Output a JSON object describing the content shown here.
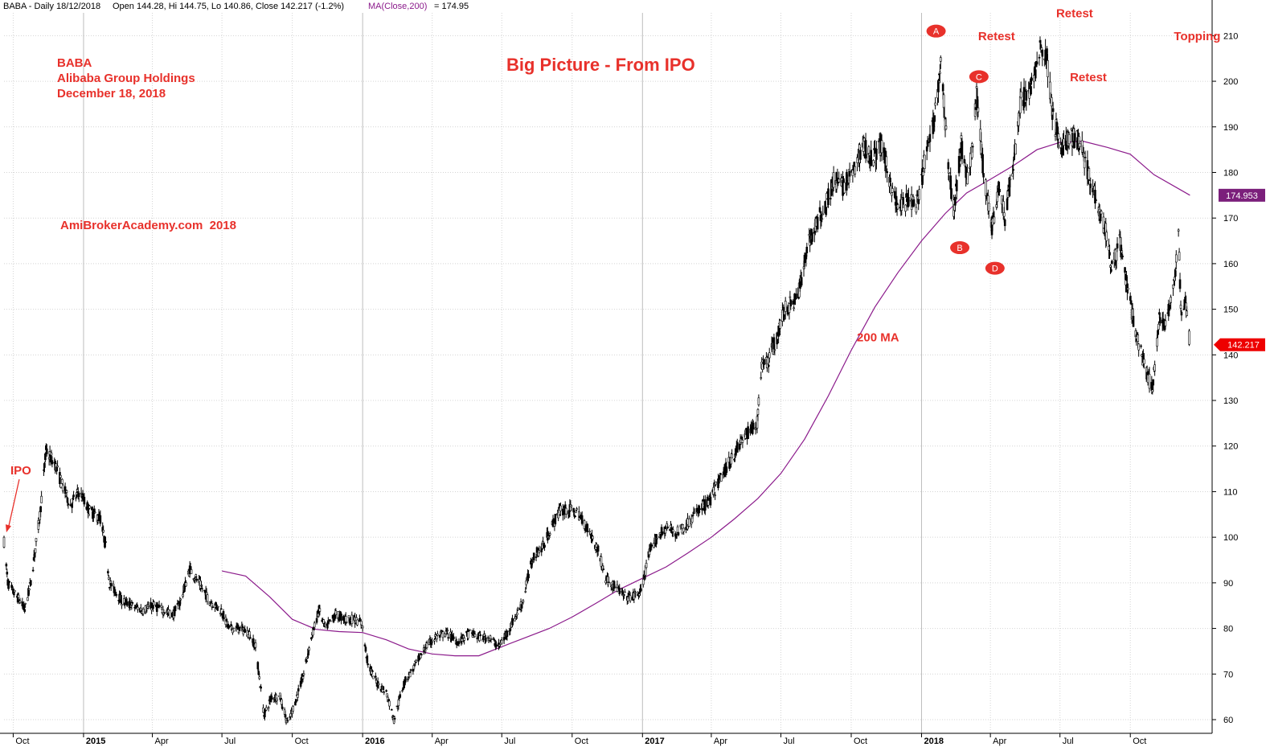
{
  "chart_data": {
    "type": "line",
    "subtype": "candlestick-with-moving-average",
    "header": {
      "symbol": "BABA - Daily 18/12/2018",
      "stats": "Open 144.28, Hi 144.75, Lo 140.86, Close 142.217 (-1.2%)",
      "ma_label": "MA(Close,200)",
      "ma_value_text": "= 174.95"
    },
    "title": "Big Picture - From IPO",
    "info_lines": [
      "BABA",
      "Alibaba Group Holdings",
      "December 18, 2018"
    ],
    "watermark": "AmiBrokerAcademy.com  2018",
    "ylim": [
      57,
      215
    ],
    "y_ticks": [
      60,
      70,
      80,
      90,
      100,
      110,
      120,
      130,
      140,
      150,
      160,
      170,
      180,
      190,
      200,
      210
    ],
    "x_range": [
      "2014-09-19",
      "2019-01-16"
    ],
    "x_ticks": [
      {
        "date": "2014-10-01",
        "label": "Oct",
        "bold": false
      },
      {
        "date": "2015-01-01",
        "label": "2015",
        "bold": true
      },
      {
        "date": "2015-04-01",
        "label": "Apr",
        "bold": false
      },
      {
        "date": "2015-07-01",
        "label": "Jul",
        "bold": false
      },
      {
        "date": "2015-10-01",
        "label": "Oct",
        "bold": false
      },
      {
        "date": "2016-01-01",
        "label": "2016",
        "bold": true
      },
      {
        "date": "2016-04-01",
        "label": "Apr",
        "bold": false
      },
      {
        "date": "2016-07-01",
        "label": "Jul",
        "bold": false
      },
      {
        "date": "2016-10-01",
        "label": "Oct",
        "bold": false
      },
      {
        "date": "2017-01-01",
        "label": "2017",
        "bold": true
      },
      {
        "date": "2017-04-01",
        "label": "Apr",
        "bold": false
      },
      {
        "date": "2017-07-01",
        "label": "Jul",
        "bold": false
      },
      {
        "date": "2017-10-01",
        "label": "Oct",
        "bold": false
      },
      {
        "date": "2018-01-01",
        "label": "2018",
        "bold": true
      },
      {
        "date": "2018-04-01",
        "label": "Apr",
        "bold": false
      },
      {
        "date": "2018-07-01",
        "label": "Jul",
        "bold": false
      },
      {
        "date": "2018-10-01",
        "label": "Oct",
        "bold": false
      }
    ],
    "price_path": [
      [
        "2014-09-19",
        99
      ],
      [
        "2014-09-24",
        90
      ],
      [
        "2014-10-01",
        88
      ],
      [
        "2014-10-10",
        86
      ],
      [
        "2014-10-16",
        84
      ],
      [
        "2014-10-24",
        90
      ],
      [
        "2014-11-05",
        105
      ],
      [
        "2014-11-13",
        119
      ],
      [
        "2014-11-25",
        116
      ],
      [
        "2014-12-05",
        111
      ],
      [
        "2014-12-15",
        107
      ],
      [
        "2014-12-26",
        110
      ],
      [
        "2015-01-08",
        106
      ],
      [
        "2015-01-23",
        104
      ],
      [
        "2015-01-30",
        98
      ],
      [
        "2015-02-04",
        90
      ],
      [
        "2015-02-20",
        86
      ],
      [
        "2015-03-05",
        85
      ],
      [
        "2015-03-20",
        84
      ],
      [
        "2015-04-02",
        85
      ],
      [
        "2015-04-15",
        84
      ],
      [
        "2015-04-28",
        83
      ],
      [
        "2015-05-08",
        86
      ],
      [
        "2015-05-20",
        93
      ],
      [
        "2015-06-01",
        90
      ],
      [
        "2015-06-15",
        86
      ],
      [
        "2015-06-30",
        84
      ],
      [
        "2015-07-10",
        80
      ],
      [
        "2015-07-24",
        80
      ],
      [
        "2015-08-05",
        79
      ],
      [
        "2015-08-14",
        76
      ],
      [
        "2015-08-25",
        61
      ],
      [
        "2015-09-04",
        65
      ],
      [
        "2015-09-15",
        65
      ],
      [
        "2015-09-25",
        59
      ],
      [
        "2015-10-05",
        64
      ],
      [
        "2015-10-16",
        70
      ],
      [
        "2015-10-26",
        78
      ],
      [
        "2015-11-05",
        84
      ],
      [
        "2015-11-13",
        80
      ],
      [
        "2015-11-27",
        83
      ],
      [
        "2015-12-10",
        82
      ],
      [
        "2015-12-22",
        82
      ],
      [
        "2015-12-31",
        81
      ],
      [
        "2016-01-08",
        72
      ],
      [
        "2016-01-20",
        68
      ],
      [
        "2016-02-01",
        66
      ],
      [
        "2016-02-11",
        60
      ],
      [
        "2016-02-24",
        68
      ],
      [
        "2016-03-10",
        72
      ],
      [
        "2016-03-24",
        76
      ],
      [
        "2016-04-05",
        78
      ],
      [
        "2016-04-20",
        79
      ],
      [
        "2016-05-05",
        77
      ],
      [
        "2016-05-20",
        79
      ],
      [
        "2016-06-03",
        78
      ],
      [
        "2016-06-15",
        78
      ],
      [
        "2016-06-27",
        76
      ],
      [
        "2016-07-08",
        79
      ],
      [
        "2016-07-20",
        83
      ],
      [
        "2016-07-29",
        86
      ],
      [
        "2016-08-05",
        92
      ],
      [
        "2016-08-12",
        96
      ],
      [
        "2016-08-24",
        98
      ],
      [
        "2016-09-06",
        103
      ],
      [
        "2016-09-16",
        106
      ],
      [
        "2016-09-28",
        106
      ],
      [
        "2016-10-10",
        105
      ],
      [
        "2016-10-24",
        101
      ],
      [
        "2016-11-04",
        97
      ],
      [
        "2016-11-14",
        91
      ],
      [
        "2016-11-28",
        89
      ],
      [
        "2016-12-08",
        87
      ],
      [
        "2016-12-20",
        87
      ],
      [
        "2016-12-30",
        88
      ],
      [
        "2017-01-09",
        96
      ],
      [
        "2017-01-20",
        100
      ],
      [
        "2017-02-01",
        102
      ],
      [
        "2017-02-15",
        101
      ],
      [
        "2017-03-01",
        103
      ],
      [
        "2017-03-15",
        106
      ],
      [
        "2017-03-30",
        108
      ],
      [
        "2017-04-13",
        113
      ],
      [
        "2017-04-27",
        117
      ],
      [
        "2017-05-10",
        121
      ],
      [
        "2017-05-24",
        124
      ],
      [
        "2017-05-31",
        125
      ],
      [
        "2017-06-06",
        138
      ],
      [
        "2017-06-15",
        139
      ],
      [
        "2017-06-26",
        144
      ],
      [
        "2017-07-06",
        150
      ],
      [
        "2017-07-20",
        152
      ],
      [
        "2017-07-28",
        156
      ],
      [
        "2017-08-04",
        164
      ],
      [
        "2017-08-15",
        168
      ],
      [
        "2017-08-28",
        173
      ],
      [
        "2017-09-08",
        178
      ],
      [
        "2017-09-20",
        177
      ],
      [
        "2017-10-04",
        180
      ],
      [
        "2017-10-16",
        186
      ],
      [
        "2017-10-30",
        183
      ],
      [
        "2017-11-09",
        186
      ],
      [
        "2017-11-21",
        178
      ],
      [
        "2017-12-01",
        172
      ],
      [
        "2017-12-14",
        174
      ],
      [
        "2017-12-28",
        173
      ],
      [
        "2018-01-05",
        183
      ],
      [
        "2018-01-16",
        190
      ],
      [
        "2018-01-26",
        204
      ],
      [
        "2018-02-06",
        180
      ],
      [
        "2018-02-12",
        172
      ],
      [
        "2018-02-22",
        186
      ],
      [
        "2018-03-02",
        178
      ],
      [
        "2018-03-08",
        185
      ],
      [
        "2018-03-14",
        197
      ],
      [
        "2018-03-23",
        180
      ],
      [
        "2018-04-03",
        168
      ],
      [
        "2018-04-12",
        177
      ],
      [
        "2018-04-20",
        170
      ],
      [
        "2018-05-02",
        183
      ],
      [
        "2018-05-11",
        196
      ],
      [
        "2018-05-24",
        198
      ],
      [
        "2018-06-05",
        208
      ],
      [
        "2018-06-14",
        205
      ],
      [
        "2018-06-22",
        192
      ],
      [
        "2018-07-03",
        185
      ],
      [
        "2018-07-16",
        188
      ],
      [
        "2018-07-27",
        187
      ],
      [
        "2018-08-07",
        180
      ],
      [
        "2018-08-20",
        173
      ],
      [
        "2018-08-30",
        167
      ],
      [
        "2018-09-07",
        159
      ],
      [
        "2018-09-17",
        165
      ],
      [
        "2018-09-28",
        154
      ],
      [
        "2018-10-09",
        144
      ],
      [
        "2018-10-19",
        138
      ],
      [
        "2018-10-30",
        132
      ],
      [
        "2018-11-08",
        149
      ],
      [
        "2018-11-16",
        146
      ],
      [
        "2018-11-28",
        157
      ],
      [
        "2018-12-03",
        166
      ],
      [
        "2018-12-06",
        150
      ],
      [
        "2018-12-12",
        152
      ],
      [
        "2018-12-18",
        142.217
      ]
    ],
    "ma_series": {
      "name": "MA(Close,200)",
      "points": [
        [
          "2015-07-01",
          92.6
        ],
        [
          "2015-08-01",
          91.5
        ],
        [
          "2015-09-01",
          87
        ],
        [
          "2015-10-01",
          82
        ],
        [
          "2015-11-01",
          79.8
        ],
        [
          "2015-12-01",
          79.3
        ],
        [
          "2016-01-01",
          79.1
        ],
        [
          "2016-02-01",
          77.5
        ],
        [
          "2016-03-01",
          75.5
        ],
        [
          "2016-04-01",
          74.4
        ],
        [
          "2016-05-01",
          74
        ],
        [
          "2016-06-01",
          74
        ],
        [
          "2016-07-01",
          76
        ],
        [
          "2016-08-01",
          78
        ],
        [
          "2016-09-01",
          80
        ],
        [
          "2016-10-01",
          82.5
        ],
        [
          "2016-11-01",
          85.5
        ],
        [
          "2016-12-01",
          88.5
        ],
        [
          "2017-01-01",
          91
        ],
        [
          "2017-02-01",
          93.5
        ],
        [
          "2017-03-01",
          96.5
        ],
        [
          "2017-04-01",
          100
        ],
        [
          "2017-05-01",
          104
        ],
        [
          "2017-06-01",
          108.5
        ],
        [
          "2017-07-01",
          114
        ],
        [
          "2017-08-01",
          121.5
        ],
        [
          "2017-09-01",
          131
        ],
        [
          "2017-10-01",
          141
        ],
        [
          "2017-11-01",
          150.5
        ],
        [
          "2017-12-01",
          158
        ],
        [
          "2018-01-01",
          165
        ],
        [
          "2018-02-01",
          171
        ],
        [
          "2018-03-01",
          175.5
        ],
        [
          "2018-04-01",
          178.5
        ],
        [
          "2018-05-01",
          181.5
        ],
        [
          "2018-06-01",
          185
        ],
        [
          "2018-07-01",
          186.6
        ],
        [
          "2018-08-01",
          186.8
        ],
        [
          "2018-09-01",
          185.5
        ],
        [
          "2018-10-01",
          184
        ],
        [
          "2018-11-01",
          179.5
        ],
        [
          "2018-12-18",
          175
        ]
      ]
    },
    "ma_last": "174.953",
    "close_last": "142.217",
    "annotations": {
      "ipo": {
        "text": "IPO",
        "date": "2014-09-20",
        "price": 100
      },
      "ma_label": {
        "text": "200 MA",
        "date": "2017-11-05",
        "price": 143
      },
      "markers": [
        {
          "text": "A",
          "date": "2018-01-20",
          "price": 211
        },
        {
          "text": "B",
          "date": "2018-02-20",
          "price": 163.5
        },
        {
          "text": "C",
          "date": "2018-03-17",
          "price": 201
        },
        {
          "text": "D",
          "date": "2018-04-07",
          "price": 159
        }
      ],
      "labels": [
        {
          "text": "Retest",
          "date": "2018-03-16",
          "price": 209
        },
        {
          "text": "Retest",
          "date": "2018-06-26",
          "price": 214
        },
        {
          "text": "Retest",
          "date": "2018-07-14",
          "price": 200
        },
        {
          "text": "Topping",
          "date": "2018-11-27",
          "price": 209
        }
      ]
    },
    "grid": true,
    "legend": "none",
    "colors": {
      "candles": "#000000",
      "ma": "#8b1a8b",
      "annotation": "#e8312b",
      "grid": "#d4d4d4",
      "axis": "#000000",
      "ma_badge": "#7b1f7b",
      "close_badge": "#ee0000"
    }
  }
}
